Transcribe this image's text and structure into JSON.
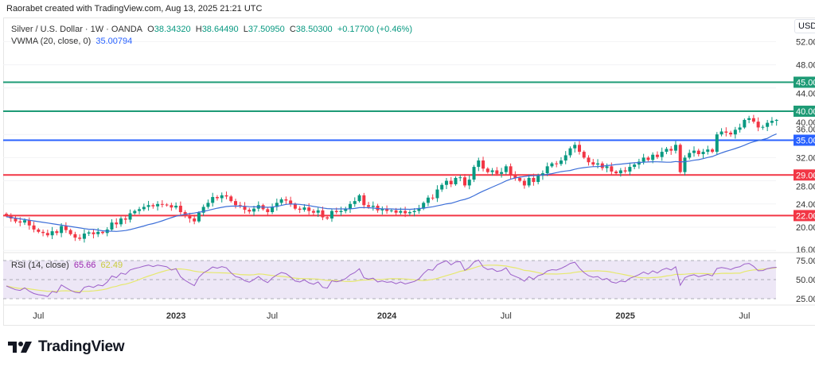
{
  "credit": "Raorabet created with TradingView.com, Aug 13, 2025 21:21 UTC",
  "legend": {
    "symbol": "Silver / U.S. Dollar · 1W · OANDA",
    "o_label": "O",
    "o": "38.34320",
    "h_label": "H",
    "h": "38.64490",
    "l_label": "L",
    "l": "37.50950",
    "c_label": "C",
    "c": "38.50300",
    "change": "+0.17700 (+0.46%)",
    "vwma_label": "VWMA (20, close, 0)",
    "vwma": "35.00794",
    "rsi_label": "RSI (14, close)",
    "rsi": "65.66",
    "rsi_ma": "62.49"
  },
  "currency": "USD",
  "brand": "TradingView",
  "colors": {
    "up": "#089981",
    "down": "#f23645",
    "green_level": "#1e9b76",
    "blue_level": "#2962ff",
    "red_level": "#f23645",
    "vwma": "#3d6fd8",
    "rsi": "#9c5fc9",
    "rsi_ma": "#e6e86e",
    "rsi_band": "#ede7f6"
  },
  "chart_data": {
    "type": "candlestick",
    "title": "Silver / U.S. Dollar · 1W · OANDA",
    "interval": "1W",
    "ylim": [
      15,
      53
    ],
    "price_ticks": [
      "52.00",
      "48.00",
      "44.00",
      "40.00",
      "36.00",
      "32.00",
      "28.00",
      "24.00",
      "20.00",
      "16.00"
    ],
    "level_lines": [
      {
        "value": 45,
        "label": "45.00",
        "color": "#1e9b76"
      },
      {
        "value": 40,
        "label": "40.00",
        "color": "#1e9b76"
      },
      {
        "value": 35,
        "label": "35.00",
        "color": "#2962ff"
      },
      {
        "value": 29,
        "label": "29.00",
        "color": "#f23645"
      },
      {
        "value": 22,
        "label": "22.00",
        "color": "#f23645"
      }
    ],
    "time_labels": [
      {
        "label": "Jul",
        "week": 7
      },
      {
        "label": "2023",
        "week": 37
      },
      {
        "label": "Jul",
        "week": 58
      },
      {
        "label": "2024",
        "week": 83
      },
      {
        "label": "Jul",
        "week": 109
      },
      {
        "label": "2025",
        "week": 135
      },
      {
        "label": "Jul",
        "week": 161
      }
    ],
    "closes": [
      22.0,
      21.5,
      21.0,
      20.8,
      21.2,
      20.3,
      19.6,
      19.2,
      19.0,
      18.6,
      19.3,
      19.0,
      20.2,
      19.5,
      18.8,
      18.2,
      18.0,
      18.9,
      19.1,
      18.8,
      19.2,
      19.0,
      19.6,
      20.8,
      20.5,
      21.5,
      21.3,
      22.4,
      22.8,
      23.1,
      23.5,
      23.8,
      23.6,
      24.0,
      23.9,
      23.8,
      23.4,
      23.7,
      22.6,
      22.0,
      21.5,
      21.0,
      22.5,
      23.5,
      24.2,
      25.2,
      25.0,
      25.5,
      25.3,
      24.5,
      23.8,
      23.6,
      23.0,
      22.7,
      23.2,
      23.8,
      23.1,
      22.6,
      23.5,
      24.2,
      24.8,
      24.6,
      24.0,
      23.2,
      23.0,
      23.4,
      22.8,
      22.5,
      22.9,
      21.7,
      21.5,
      22.8,
      22.6,
      22.8,
      23.2,
      24.0,
      24.5,
      25.5,
      23.8,
      23.5,
      23.7,
      22.9,
      23.1,
      22.8,
      22.9,
      22.5,
      22.8,
      22.4,
      22.6,
      22.8,
      23.2,
      24.2,
      25.1,
      25.0,
      26.5,
      27.3,
      28.0,
      27.4,
      28.5,
      28.6,
      27.2,
      28.2,
      30.4,
      31.5,
      30.1,
      29.5,
      29.8,
      29.2,
      29.5,
      30.5,
      29.0,
      28.5,
      28.0,
      27.2,
      28.5,
      27.8,
      28.9,
      29.3,
      30.5,
      31.0,
      30.9,
      31.5,
      32.4,
      33.6,
      34.2,
      33.0,
      32.0,
      31.2,
      30.8,
      31.0,
      30.2,
      30.5,
      29.6,
      29.3,
      29.8,
      29.6,
      30.4,
      30.8,
      31.3,
      32.0,
      31.6,
      32.5,
      32.1,
      33.0,
      33.5,
      33.2,
      34.2,
      29.5,
      32.0,
      32.8,
      33.2,
      32.6,
      33.0,
      33.4,
      33.0,
      36.0,
      36.5,
      36.3,
      36.0,
      36.8,
      37.2,
      38.5,
      38.8,
      38.2,
      37.2,
      37.3,
      38.0,
      38.3432,
      38.503
    ],
    "last": {
      "open": 38.3432,
      "high": 38.6449,
      "low": 37.5095,
      "close": 38.503
    },
    "indicators": {
      "vwma": {
        "period": 20,
        "last": 35.00794
      },
      "rsi": {
        "period": 14,
        "last": 65.66,
        "ma_last": 62.49,
        "ticks": [
          "75.00",
          "50.00",
          "25.00"
        ],
        "bands": [
          30,
          70
        ]
      }
    }
  }
}
